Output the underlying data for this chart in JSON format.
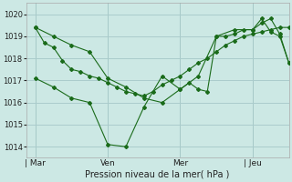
{
  "background_color": "#cce8e4",
  "grid_color": "#aacccc",
  "line_color": "#1a6b1a",
  "title": "Pression niveau de la mer( hPa )",
  "ylim": [
    1013.5,
    1020.5
  ],
  "yticks": [
    1014,
    1015,
    1016,
    1017,
    1018,
    1019,
    1020
  ],
  "day_labels": [
    "| Mar",
    "Ven",
    "Mer",
    "| Jeu"
  ],
  "day_positions": [
    0,
    24,
    48,
    72
  ],
  "vline_positions": [
    0,
    24,
    48,
    72
  ],
  "xmin": -3,
  "xmax": 84,
  "series1_x": [
    0,
    3,
    6,
    9,
    12,
    15,
    18,
    21,
    24,
    27,
    30,
    33,
    36,
    39,
    42,
    45,
    48,
    51,
    54,
    57,
    60,
    63,
    66,
    69,
    72,
    75,
    78,
    81,
    84
  ],
  "series1_y": [
    1019.4,
    1018.7,
    1018.5,
    1017.9,
    1017.5,
    1017.4,
    1017.2,
    1017.1,
    1016.9,
    1016.7,
    1016.5,
    1016.4,
    1016.3,
    1016.5,
    1016.8,
    1017.0,
    1017.2,
    1017.5,
    1017.8,
    1018.0,
    1018.3,
    1018.6,
    1018.8,
    1019.0,
    1019.1,
    1019.2,
    1019.3,
    1019.4,
    1019.4
  ],
  "series2_x": [
    0,
    6,
    12,
    18,
    24,
    30,
    36,
    42,
    48,
    51,
    54,
    57,
    60,
    63,
    66,
    69,
    72,
    75,
    78,
    81,
    84
  ],
  "series2_y": [
    1017.1,
    1016.7,
    1016.2,
    1016.0,
    1014.1,
    1014.0,
    1015.8,
    1017.2,
    1016.6,
    1016.9,
    1016.6,
    1016.5,
    1019.0,
    1019.0,
    1019.1,
    1019.3,
    1019.3,
    1019.6,
    1019.8,
    1019.1,
    1017.8
  ],
  "series3_x": [
    0,
    6,
    12,
    18,
    24,
    30,
    36,
    42,
    48,
    54,
    60,
    66,
    72,
    75,
    78,
    81,
    84
  ],
  "series3_y": [
    1019.4,
    1019.0,
    1018.6,
    1018.3,
    1017.1,
    1016.7,
    1016.2,
    1016.0,
    1016.6,
    1017.2,
    1019.0,
    1019.3,
    1019.3,
    1019.8,
    1019.2,
    1019.0,
    1017.8
  ]
}
